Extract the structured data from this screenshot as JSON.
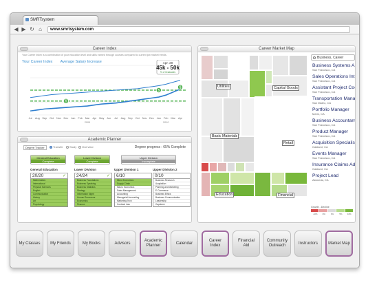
{
  "browser": {
    "tab_title": "SMRTsystem",
    "url": "www.smrtsystem.com"
  },
  "career_index": {
    "title": "Career Index",
    "description": "Your Career Index is a combination of your education level and skills earned through courses compared to current job market trends.",
    "career_index_label": "Your Career Index",
    "salary_label": "Average Salary Increase",
    "tooltip_date": "Apr. 20",
    "tooltip_value": "45k - 50k",
    "tooltip_sub": "% of Graduates",
    "markers": [
      "$",
      "$",
      "$"
    ],
    "axis_months": [
      "Jul",
      "Aug",
      "Sep",
      "Oct",
      "Nov",
      "Dec",
      "Jan",
      "Feb",
      "Mar",
      "Apr",
      "May",
      "Jun",
      "Jul",
      "Aug",
      "Sep",
      "Oct",
      "Nov",
      "Dec",
      "Jan",
      "Feb",
      "Mar",
      "Apr"
    ],
    "year_labels": [
      "2009",
      "2010"
    ],
    "chart_data": {
      "type": "line",
      "series": [
        {
          "name": "Your Career Index",
          "values": [
            8,
            10,
            12,
            13,
            14,
            15,
            16,
            17,
            18,
            20,
            22,
            23,
            24,
            26,
            28,
            30,
            32,
            34,
            36,
            40,
            46,
            52
          ]
        },
        {
          "name": "Average Salary Increase",
          "values": [
            35,
            37,
            39,
            41,
            42,
            43,
            44,
            45,
            46,
            47,
            48,
            49,
            50,
            51,
            52,
            53,
            55,
            57,
            59,
            62,
            66,
            70
          ]
        }
      ],
      "thresholds": [
        50,
        28
      ],
      "ylim": [
        0,
        100
      ]
    }
  },
  "academic_planner": {
    "title": "Academic Planner",
    "track_label": "Degree Tracker",
    "options": [
      "Transfer",
      "Study",
      "Overview"
    ],
    "progress": "Degree progress : 65% Complete",
    "status": [
      {
        "label": "General Education",
        "sub": "Complete"
      },
      {
        "label": "Lower Division",
        "sub": "Complete"
      },
      {
        "label": "Upper Division",
        "sub": "Incomplete"
      }
    ],
    "columns": [
      {
        "title": "General Education",
        "count": "20/20",
        "check": "✓",
        "filled": 8,
        "courses": [
          "Mathematics",
          "International",
          "Physical Sciences",
          "English",
          "Communication",
          "History",
          "Art",
          "Psychology"
        ]
      },
      {
        "title": "Lower Division",
        "count": "24/24",
        "check": "✓",
        "filled": 8,
        "courses": [
          "Business Foundations",
          "Business Speaking",
          "Business Statistics",
          "Strategy",
          "Information Mgmt",
          "Human Resources",
          "Economics",
          "Finance"
        ]
      },
      {
        "title": "Upper Division 1",
        "count": "6/10",
        "check": "",
        "filled": 2,
        "courses": [
          "Micro Economics",
          "Supply Chain",
          "Macro Economics",
          "Sales Management",
          "Accounting",
          "Managerial Accounting",
          "Marketing Tech",
          "Contract Law"
        ]
      },
      {
        "title": "Upper Division 2",
        "count": "0/10",
        "check": "",
        "filled": 0,
        "courses": [
          "Business Research",
          "Acquisition",
          "Planning and Marketing",
          "E-Commerce",
          "Business Ethics",
          "Business Communication",
          "Leadership",
          "Capstone"
        ]
      }
    ]
  },
  "market_map": {
    "title": "Career Market Map",
    "search_value": "Business, Career",
    "sectors": [
      "Utilities",
      "Capital Goods",
      "Basic Materials",
      "Retail",
      "Education",
      "Financial"
    ],
    "jobs": [
      {
        "title": "Business Systems Analyst",
        "location": "San Francisco, CA"
      },
      {
        "title": "Sales Operations Intern",
        "location": "San Francisco, CA"
      },
      {
        "title": "Assistant Project Coord.",
        "location": "San Francisco, CA"
      },
      {
        "title": "Transportation Manager",
        "location": "San Mateo, CA"
      },
      {
        "title": "Portfolio Manager",
        "location": "Marin, CA"
      },
      {
        "title": "Business Accountant",
        "location": "San Francisco, CA"
      },
      {
        "title": "Product Manager",
        "location": "San Francisco, CA"
      },
      {
        "title": "Acquisition Specialist",
        "location": "Oakland, CA"
      },
      {
        "title": "Events Manager",
        "location": "San Francisco, CA"
      },
      {
        "title": "Insurance Claims Adjuster",
        "location": "Oakland, CA"
      },
      {
        "title": "Project Lead",
        "location": "Alameda, CA"
      }
    ],
    "legend_title": "Growth - Decline",
    "legend_ticks": [
      "-10%",
      "-5%",
      "0%",
      "5%",
      "10%"
    ],
    "legend_colors": [
      "#d84b4b",
      "#e8a0a0",
      "#dcdcdc",
      "#b6dc8c",
      "#79b83b"
    ]
  },
  "nav": [
    {
      "name": "nav-my-classes",
      "label": "My Classes",
      "active": false
    },
    {
      "name": "nav-my-friends",
      "label": "My Friends",
      "active": false
    },
    {
      "name": "nav-my-books",
      "label": "My Books",
      "active": false
    },
    {
      "name": "nav-advisors",
      "label": "Advisors",
      "active": false
    },
    {
      "name": "nav-academic-planner",
      "label": "Academic Planner",
      "active": true
    },
    {
      "name": "nav-calendar",
      "label": "Calendar",
      "active": false
    },
    {
      "name": "nav-career-index",
      "label": "Career Index",
      "active": true
    },
    {
      "name": "nav-financial-aid",
      "label": "Financial Aid",
      "active": false
    },
    {
      "name": "nav-community-outreach",
      "label": "Community Outreach",
      "active": false
    },
    {
      "name": "nav-instructors",
      "label": "Instructors",
      "active": false
    },
    {
      "name": "nav-market-map",
      "label": "Market Map",
      "active": true
    }
  ]
}
